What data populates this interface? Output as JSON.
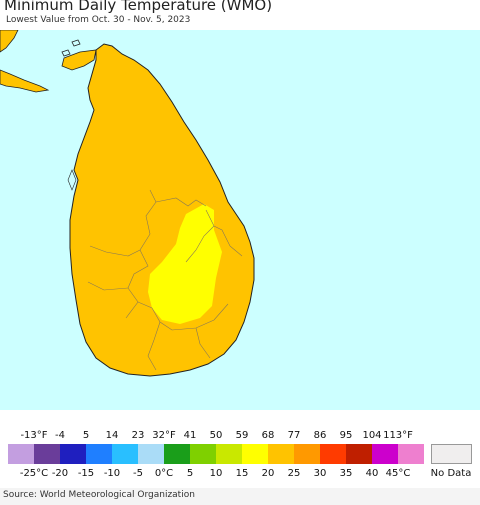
{
  "header": {
    "title": "Minimum Daily Temperature (WMO)",
    "subtitle": "Lowest Value from Oct. 30 - Nov. 5, 2023"
  },
  "map": {
    "ocean_color": "#ccffff",
    "land_color": "#ffc300",
    "warm_color": "#ffff00",
    "border_color": "#8a7a55",
    "coast_color": "#222222"
  },
  "legend": {
    "fahrenheit_labels": [
      "-13°F",
      "-4",
      "5",
      "14",
      "23",
      "32°F",
      "41",
      "50",
      "59",
      "68",
      "77",
      "86",
      "95",
      "104",
      "113°F"
    ],
    "celsius_labels": [
      "-25°C",
      "-20",
      "-15",
      "-10",
      "-5",
      "0°C",
      "5",
      "10",
      "15",
      "20",
      "25",
      "30",
      "35",
      "40",
      "45°C"
    ],
    "colors": [
      "#c39ee0",
      "#6a3d9a",
      "#1f1fbf",
      "#1f7fff",
      "#29bfff",
      "#aadcf7",
      "#1a9e1a",
      "#7fd000",
      "#c9e800",
      "#ffff00",
      "#ffc300",
      "#ff9900",
      "#ff3b00",
      "#bf1f00",
      "#cc00cc",
      "#ee7fcf"
    ],
    "no_data_label": "No Data",
    "no_data_color": "#f0eeee"
  },
  "footer": {
    "source": "Source: World Meteorological Organization"
  }
}
